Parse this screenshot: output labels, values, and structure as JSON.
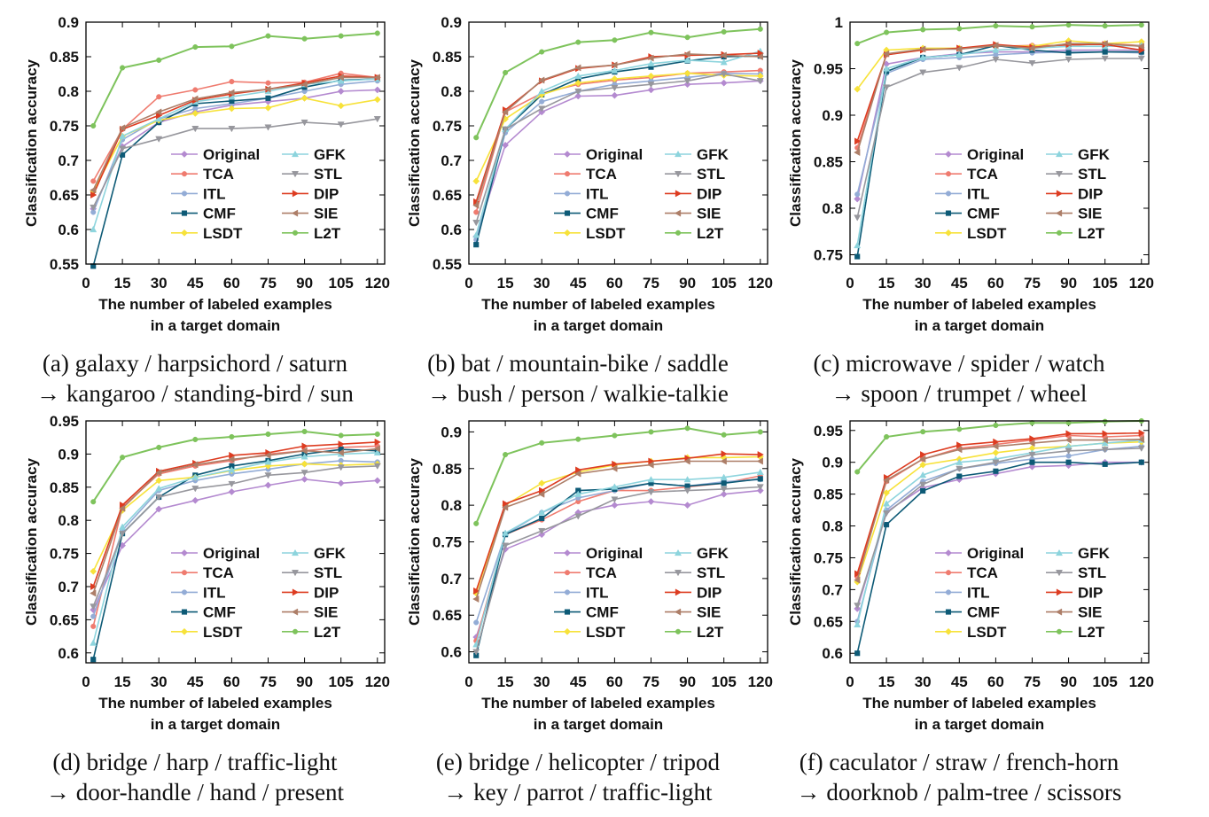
{
  "xlabel_line1": "The number of labeled examples",
  "xlabel_line2": "in a target domain",
  "ylabel": "Classification accuracy",
  "series_meta": [
    {
      "name": "Original",
      "color": "#b48ad0",
      "marker": "diamond"
    },
    {
      "name": "TCA",
      "color": "#ef7b6f",
      "marker": "circle"
    },
    {
      "name": "ITL",
      "color": "#93acd6",
      "marker": "circle"
    },
    {
      "name": "CMF",
      "color": "#0d5a76",
      "marker": "square"
    },
    {
      "name": "LSDT",
      "color": "#f7e23a",
      "marker": "diamond"
    },
    {
      "name": "GFK",
      "color": "#8dd4dd",
      "marker": "triangle-up"
    },
    {
      "name": "STL",
      "color": "#97979d",
      "marker": "triangle-down"
    },
    {
      "name": "DIP",
      "color": "#dd3c21",
      "marker": "triangle-right"
    },
    {
      "name": "SIE",
      "color": "#ad7e68",
      "marker": "triangle-left"
    },
    {
      "name": "L2T",
      "color": "#7ec35c",
      "marker": "circle"
    }
  ],
  "chart_data": [
    {
      "type": "line",
      "caption_line1": "(a) galaxy / harpsichord / saturn",
      "caption_line2": "→ kangaroo / standing-bird / sun",
      "x": [
        3,
        15,
        30,
        45,
        60,
        75,
        90,
        105,
        120
      ],
      "xticks": [
        "0",
        "15",
        "30",
        "45",
        "60",
        "75",
        "90",
        "105",
        "120"
      ],
      "ylim": [
        0.55,
        0.9
      ],
      "yticks": [
        "0.55",
        "0.6",
        "0.65",
        "0.7",
        "0.75",
        "0.8",
        "0.85",
        "0.9"
      ],
      "series": [
        {
          "name": "Original",
          "values": [
            0.63,
            0.72,
            0.755,
            0.77,
            0.78,
            0.785,
            0.79,
            0.8,
            0.802
          ]
        },
        {
          "name": "TCA",
          "values": [
            0.67,
            0.745,
            0.792,
            0.802,
            0.814,
            0.812,
            0.813,
            0.826,
            0.82
          ]
        },
        {
          "name": "ITL",
          "values": [
            0.625,
            0.73,
            0.76,
            0.775,
            0.782,
            0.79,
            0.8,
            0.81,
            0.815
          ]
        },
        {
          "name": "CMF",
          "values": [
            0.547,
            0.708,
            0.755,
            0.782,
            0.786,
            0.79,
            0.806,
            0.816,
            0.818
          ]
        },
        {
          "name": "LSDT",
          "values": [
            0.655,
            0.735,
            0.758,
            0.768,
            0.775,
            0.776,
            0.79,
            0.779,
            0.788
          ]
        },
        {
          "name": "GFK",
          "values": [
            0.6,
            0.735,
            0.76,
            0.785,
            0.792,
            0.8,
            0.81,
            0.815,
            0.818
          ]
        },
        {
          "name": "STL",
          "values": [
            0.632,
            0.717,
            0.731,
            0.746,
            0.746,
            0.748,
            0.755,
            0.752,
            0.76
          ]
        },
        {
          "name": "DIP",
          "values": [
            0.65,
            0.745,
            0.765,
            0.787,
            0.796,
            0.803,
            0.812,
            0.822,
            0.82
          ]
        },
        {
          "name": "SIE",
          "values": [
            0.657,
            0.747,
            0.77,
            0.789,
            0.798,
            0.803,
            0.81,
            0.82,
            0.82
          ]
        },
        {
          "name": "L2T",
          "values": [
            0.75,
            0.834,
            0.845,
            0.864,
            0.865,
            0.88,
            0.876,
            0.88,
            0.884
          ]
        }
      ]
    },
    {
      "type": "line",
      "caption_line1": "(b) bat / mountain-bike / saddle",
      "caption_line2": "→ bush / person / walkie-talkie",
      "x": [
        3,
        15,
        30,
        45,
        60,
        75,
        90,
        105,
        120
      ],
      "xticks": [
        "0",
        "15",
        "30",
        "45",
        "60",
        "75",
        "90",
        "105",
        "120"
      ],
      "ylim": [
        0.55,
        0.9
      ],
      "yticks": [
        "0.55",
        "0.6",
        "0.65",
        "0.7",
        "0.75",
        "0.8",
        "0.85",
        "0.9"
      ],
      "series": [
        {
          "name": "Original",
          "values": [
            0.59,
            0.722,
            0.77,
            0.793,
            0.794,
            0.802,
            0.81,
            0.812,
            0.815
          ]
        },
        {
          "name": "TCA",
          "values": [
            0.625,
            0.77,
            0.797,
            0.81,
            0.816,
            0.82,
            0.826,
            0.828,
            0.83
          ]
        },
        {
          "name": "ITL",
          "values": [
            0.585,
            0.74,
            0.785,
            0.8,
            0.81,
            0.815,
            0.82,
            0.826,
            0.825
          ]
        },
        {
          "name": "CMF",
          "values": [
            0.578,
            0.745,
            0.795,
            0.818,
            0.828,
            0.835,
            0.844,
            0.85,
            0.851
          ]
        },
        {
          "name": "LSDT",
          "values": [
            0.67,
            0.76,
            0.795,
            0.812,
            0.818,
            0.822,
            0.826,
            0.823,
            0.822
          ]
        },
        {
          "name": "GFK",
          "values": [
            0.592,
            0.745,
            0.8,
            0.822,
            0.83,
            0.84,
            0.845,
            0.842,
            0.858
          ]
        },
        {
          "name": "STL",
          "values": [
            0.61,
            0.745,
            0.775,
            0.8,
            0.805,
            0.81,
            0.815,
            0.825,
            0.815
          ]
        },
        {
          "name": "DIP",
          "values": [
            0.64,
            0.773,
            0.815,
            0.833,
            0.838,
            0.85,
            0.852,
            0.853,
            0.855
          ]
        },
        {
          "name": "SIE",
          "values": [
            0.635,
            0.77,
            0.816,
            0.834,
            0.838,
            0.848,
            0.854,
            0.852,
            0.85
          ]
        },
        {
          "name": "L2T",
          "values": [
            0.733,
            0.827,
            0.857,
            0.871,
            0.874,
            0.885,
            0.878,
            0.886,
            0.89
          ]
        }
      ]
    },
    {
      "type": "line",
      "caption_line1": "(c) microwave / spider / watch",
      "caption_line2": "→ spoon / trumpet / wheel",
      "x": [
        3,
        15,
        30,
        45,
        60,
        75,
        90,
        105,
        120
      ],
      "xticks": [
        "0",
        "15",
        "30",
        "45",
        "60",
        "75",
        "90",
        "105",
        "120"
      ],
      "ylim": [
        0.74,
        1.0
      ],
      "yticks": [
        "0.75",
        "0.8",
        "0.85",
        "0.9",
        "0.95",
        "1"
      ],
      "series": [
        {
          "name": "Original",
          "values": [
            0.81,
            0.955,
            0.962,
            0.966,
            0.968,
            0.968,
            0.97,
            0.97,
            0.97
          ]
        },
        {
          "name": "TCA",
          "values": [
            0.865,
            0.965,
            0.971,
            0.972,
            0.974,
            0.975,
            0.975,
            0.977,
            0.975
          ]
        },
        {
          "name": "ITL",
          "values": [
            0.815,
            0.945,
            0.96,
            0.962,
            0.965,
            0.967,
            0.968,
            0.968,
            0.967
          ]
        },
        {
          "name": "CMF",
          "values": [
            0.748,
            0.947,
            0.962,
            0.965,
            0.975,
            0.97,
            0.967,
            0.968,
            0.968
          ]
        },
        {
          "name": "LSDT",
          "values": [
            0.928,
            0.97,
            0.972,
            0.972,
            0.975,
            0.974,
            0.98,
            0.977,
            0.979
          ]
        },
        {
          "name": "GFK",
          "values": [
            0.76,
            0.95,
            0.962,
            0.965,
            0.97,
            0.972,
            0.974,
            0.974,
            0.975
          ]
        },
        {
          "name": "STL",
          "values": [
            0.79,
            0.93,
            0.946,
            0.951,
            0.96,
            0.956,
            0.96,
            0.961,
            0.961
          ]
        },
        {
          "name": "DIP",
          "values": [
            0.872,
            0.965,
            0.97,
            0.972,
            0.976,
            0.973,
            0.976,
            0.976,
            0.97
          ]
        },
        {
          "name": "SIE",
          "values": [
            0.86,
            0.966,
            0.971,
            0.971,
            0.975,
            0.972,
            0.977,
            0.977,
            0.974
          ]
        },
        {
          "name": "L2T",
          "values": [
            0.977,
            0.989,
            0.992,
            0.993,
            0.996,
            0.995,
            0.997,
            0.996,
            0.997
          ]
        }
      ]
    },
    {
      "type": "line",
      "caption_line1": "(d) bridge / harp / traffic-light",
      "caption_line2": "→ door-handle / hand / present",
      "x": [
        3,
        15,
        30,
        45,
        60,
        75,
        90,
        105,
        120
      ],
      "xticks": [
        "0",
        "15",
        "30",
        "45",
        "60",
        "75",
        "90",
        "105",
        "120"
      ],
      "ylim": [
        0.585,
        0.95
      ],
      "yticks": [
        "0.6",
        "0.65",
        "0.7",
        "0.75",
        "0.8",
        "0.85",
        "0.9",
        "0.95"
      ],
      "series": [
        {
          "name": "Original",
          "values": [
            0.665,
            0.762,
            0.817,
            0.83,
            0.843,
            0.853,
            0.862,
            0.856,
            0.86
          ]
        },
        {
          "name": "TCA",
          "values": [
            0.64,
            0.82,
            0.87,
            0.882,
            0.89,
            0.9,
            0.905,
            0.91,
            0.912
          ]
        },
        {
          "name": "ITL",
          "values": [
            0.655,
            0.785,
            0.845,
            0.86,
            0.87,
            0.877,
            0.885,
            0.89,
            0.888
          ]
        },
        {
          "name": "CMF",
          "values": [
            0.59,
            0.78,
            0.835,
            0.868,
            0.882,
            0.89,
            0.9,
            0.907,
            0.905
          ]
        },
        {
          "name": "LSDT",
          "values": [
            0.723,
            0.815,
            0.86,
            0.865,
            0.875,
            0.882,
            0.885,
            0.883,
            0.885
          ]
        },
        {
          "name": "GFK",
          "values": [
            0.615,
            0.79,
            0.848,
            0.865,
            0.876,
            0.888,
            0.896,
            0.9,
            0.902
          ]
        },
        {
          "name": "STL",
          "values": [
            0.67,
            0.78,
            0.835,
            0.848,
            0.855,
            0.868,
            0.872,
            0.88,
            0.882
          ]
        },
        {
          "name": "DIP",
          "values": [
            0.7,
            0.823,
            0.874,
            0.886,
            0.898,
            0.902,
            0.912,
            0.915,
            0.918
          ]
        },
        {
          "name": "SIE",
          "values": [
            0.69,
            0.818,
            0.872,
            0.884,
            0.892,
            0.898,
            0.905,
            0.902,
            0.908
          ]
        },
        {
          "name": "L2T",
          "values": [
            0.828,
            0.895,
            0.91,
            0.922,
            0.926,
            0.93,
            0.934,
            0.928,
            0.93
          ]
        }
      ]
    },
    {
      "type": "line",
      "caption_line1": "(e) bridge / helicopter / tripod",
      "caption_line2": "→ key / parrot / traffic-light",
      "x": [
        3,
        15,
        30,
        45,
        60,
        75,
        90,
        105,
        120
      ],
      "xticks": [
        "0",
        "15",
        "30",
        "45",
        "60",
        "75",
        "90",
        "105",
        "120"
      ],
      "ylim": [
        0.585,
        0.915
      ],
      "yticks": [
        "0.6",
        "0.65",
        "0.7",
        "0.75",
        "0.8",
        "0.85",
        "0.9"
      ],
      "series": [
        {
          "name": "Original",
          "values": [
            0.62,
            0.74,
            0.76,
            0.79,
            0.8,
            0.805,
            0.8,
            0.815,
            0.82
          ]
        },
        {
          "name": "TCA",
          "values": [
            0.615,
            0.76,
            0.78,
            0.805,
            0.82,
            0.82,
            0.825,
            0.83,
            0.84
          ]
        },
        {
          "name": "ITL",
          "values": [
            0.64,
            0.76,
            0.79,
            0.81,
            0.82,
            0.83,
            0.826,
            0.832,
            0.835
          ]
        },
        {
          "name": "CMF",
          "values": [
            0.595,
            0.76,
            0.782,
            0.82,
            0.822,
            0.83,
            0.826,
            0.83,
            0.836
          ]
        },
        {
          "name": "LSDT",
          "values": [
            0.68,
            0.8,
            0.83,
            0.845,
            0.855,
            0.86,
            0.865,
            0.865,
            0.866
          ]
        },
        {
          "name": "GFK",
          "values": [
            0.61,
            0.762,
            0.79,
            0.815,
            0.825,
            0.835,
            0.835,
            0.838,
            0.845
          ]
        },
        {
          "name": "STL",
          "values": [
            0.6,
            0.745,
            0.765,
            0.785,
            0.808,
            0.818,
            0.82,
            0.822,
            0.825
          ]
        },
        {
          "name": "DIP",
          "values": [
            0.683,
            0.802,
            0.82,
            0.848,
            0.856,
            0.86,
            0.864,
            0.87,
            0.869
          ]
        },
        {
          "name": "SIE",
          "values": [
            0.672,
            0.797,
            0.815,
            0.843,
            0.85,
            0.855,
            0.86,
            0.86,
            0.86
          ]
        },
        {
          "name": "L2T",
          "values": [
            0.775,
            0.869,
            0.885,
            0.89,
            0.895,
            0.9,
            0.905,
            0.896,
            0.9
          ]
        }
      ]
    },
    {
      "type": "line",
      "caption_line1": "(f) caculator / straw / french-horn",
      "caption_line2": "→ doorknob / palm-tree / scissors",
      "x": [
        3,
        15,
        30,
        45,
        60,
        75,
        90,
        105,
        120
      ],
      "xticks": [
        "0",
        "15",
        "30",
        "45",
        "60",
        "75",
        "90",
        "105",
        "120"
      ],
      "ylim": [
        0.585,
        0.965
      ],
      "yticks": [
        "0.6",
        "0.65",
        "0.7",
        "0.75",
        "0.8",
        "0.85",
        "0.9",
        "0.95"
      ],
      "series": [
        {
          "name": "Original",
          "values": [
            0.67,
            0.822,
            0.86,
            0.873,
            0.882,
            0.893,
            0.895,
            0.9,
            0.9
          ]
        },
        {
          "name": "TCA",
          "values": [
            0.72,
            0.87,
            0.905,
            0.922,
            0.928,
            0.935,
            0.942,
            0.94,
            0.942
          ]
        },
        {
          "name": "ITL",
          "values": [
            0.65,
            0.825,
            0.87,
            0.89,
            0.898,
            0.905,
            0.91,
            0.92,
            0.925
          ]
        },
        {
          "name": "CMF",
          "values": [
            0.6,
            0.802,
            0.855,
            0.878,
            0.886,
            0.9,
            0.9,
            0.897,
            0.9
          ]
        },
        {
          "name": "LSDT",
          "values": [
            0.712,
            0.852,
            0.896,
            0.905,
            0.915,
            0.922,
            0.925,
            0.93,
            0.932
          ]
        },
        {
          "name": "GFK",
          "values": [
            0.645,
            0.835,
            0.88,
            0.9,
            0.905,
            0.915,
            0.925,
            0.93,
            0.935
          ]
        },
        {
          "name": "STL",
          "values": [
            0.675,
            0.82,
            0.865,
            0.89,
            0.9,
            0.912,
            0.918,
            0.92,
            0.922
          ]
        },
        {
          "name": "DIP",
          "values": [
            0.725,
            0.876,
            0.912,
            0.927,
            0.932,
            0.937,
            0.945,
            0.945,
            0.946
          ]
        },
        {
          "name": "SIE",
          "values": [
            0.715,
            0.872,
            0.905,
            0.92,
            0.925,
            0.93,
            0.935,
            0.935,
            0.936
          ]
        },
        {
          "name": "L2T",
          "values": [
            0.885,
            0.94,
            0.948,
            0.952,
            0.958,
            0.962,
            0.962,
            0.964,
            0.965
          ]
        }
      ]
    }
  ]
}
